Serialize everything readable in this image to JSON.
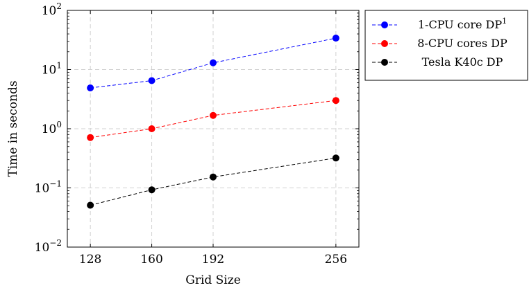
{
  "chart_data": {
    "type": "line",
    "xlabel": "Grid Size",
    "ylabel": "Time in seconds",
    "yscale": "log",
    "xlim": [
      116,
      268
    ],
    "ylim": [
      0.01,
      100
    ],
    "grid": true,
    "legend_position": "outside top-right",
    "x": [
      128,
      160,
      192,
      256
    ],
    "x_tick_labels": [
      "128",
      "160",
      "192",
      "256"
    ],
    "y_tick_labels": [
      {
        "base": "10",
        "exp": "−2"
      },
      {
        "base": "10",
        "exp": "−1"
      },
      {
        "base": "10",
        "exp": "0"
      },
      {
        "base": "10",
        "exp": "1"
      },
      {
        "base": "10",
        "exp": "2"
      }
    ],
    "series": [
      {
        "name": "1-CPU core DP",
        "name_superscript": "1",
        "color": "#0000ff",
        "line_style": "dashed",
        "marker": "circle",
        "values": [
          4.9,
          6.5,
          13,
          34
        ]
      },
      {
        "name": "8-CPU cores DP",
        "name_superscript": "",
        "color": "#ff0000",
        "line_style": "dashed",
        "marker": "circle",
        "values": [
          0.71,
          1.0,
          1.68,
          3.0
        ]
      },
      {
        "name": "Tesla K40c DP",
        "name_superscript": "",
        "color": "#000000",
        "line_style": "dashed",
        "marker": "circle",
        "values": [
          0.051,
          0.093,
          0.153,
          0.32
        ]
      }
    ]
  }
}
